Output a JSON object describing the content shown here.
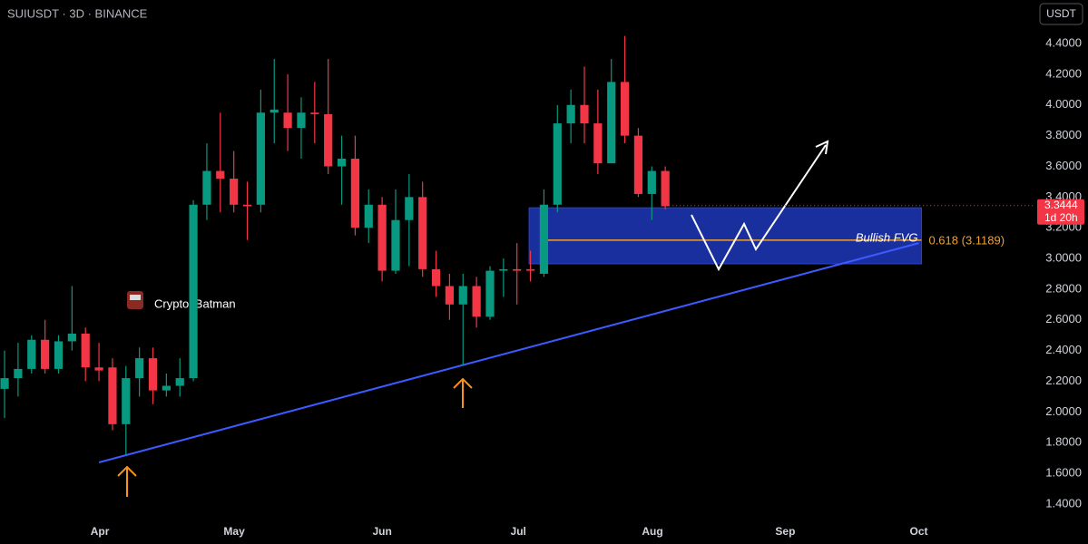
{
  "chart_data": {
    "type": "candlestick",
    "title": "SUIUSDT · 3D · BINANCE",
    "currency": "USDT",
    "watermark": "CryptosBatman",
    "up_color": "#089981",
    "down_color": "#f23645",
    "series": {
      "open": [
        2.15,
        2.22,
        2.28,
        2.47,
        2.28,
        2.46,
        2.51,
        2.29,
        2.29,
        1.92,
        2.22,
        2.35,
        2.14,
        2.17,
        2.22,
        3.35,
        3.57,
        3.52,
        3.35,
        3.35,
        3.95,
        3.95,
        3.85,
        3.95,
        3.94,
        3.6,
        3.65,
        3.2,
        3.35,
        2.92,
        3.25,
        3.4,
        2.93,
        2.82,
        2.7,
        2.82,
        2.62,
        2.92,
        2.93,
        2.93,
        2.9,
        3.35,
        3.88,
        4.0,
        3.88,
        3.62,
        4.15,
        3.8,
        3.42,
        3.57
      ],
      "high": [
        2.4,
        2.45,
        2.5,
        2.6,
        2.5,
        2.82,
        2.55,
        2.45,
        2.35,
        2.3,
        2.42,
        2.42,
        2.25,
        2.35,
        3.38,
        3.75,
        3.95,
        3.7,
        3.5,
        4.1,
        4.3,
        4.2,
        4.05,
        4.15,
        4.3,
        3.8,
        3.8,
        3.45,
        3.4,
        3.45,
        3.55,
        3.5,
        3.05,
        2.9,
        2.9,
        2.88,
        2.95,
        3.0,
        3.1,
        3.05,
        3.45,
        4.0,
        4.1,
        4.25,
        4.1,
        4.3,
        4.45,
        3.85,
        3.6,
        3.6
      ],
      "low": [
        1.96,
        2.1,
        2.25,
        2.25,
        2.25,
        2.4,
        2.2,
        2.2,
        1.88,
        1.72,
        2.1,
        2.05,
        2.1,
        2.1,
        2.2,
        3.25,
        3.3,
        3.3,
        3.12,
        3.3,
        3.75,
        3.7,
        3.65,
        3.75,
        3.55,
        3.35,
        3.15,
        3.1,
        2.85,
        2.9,
        2.95,
        2.88,
        2.75,
        2.6,
        2.3,
        2.55,
        2.6,
        2.75,
        2.7,
        2.85,
        2.88,
        3.3,
        3.75,
        3.75,
        3.55,
        3.65,
        3.75,
        3.4,
        3.25,
        3.32
      ],
      "close": [
        2.22,
        2.28,
        2.47,
        2.28,
        2.46,
        2.51,
        2.29,
        2.27,
        1.92,
        2.22,
        2.35,
        2.14,
        2.17,
        2.22,
        3.35,
        3.57,
        3.52,
        3.35,
        3.34,
        3.95,
        3.97,
        3.85,
        3.95,
        3.94,
        3.6,
        3.65,
        3.2,
        3.35,
        2.92,
        3.25,
        3.4,
        2.93,
        2.82,
        2.7,
        2.82,
        2.62,
        2.92,
        2.93,
        2.92,
        2.92,
        3.35,
        3.88,
        4.0,
        3.88,
        3.62,
        4.15,
        3.8,
        3.42,
        3.57,
        3.34
      ]
    },
    "xlim": [
      -0.34,
      76.38
    ],
    "xticks": [
      {
        "value": 7.07,
        "label": "Apr"
      },
      {
        "value": 17.03,
        "label": "May"
      },
      {
        "value": 28.0,
        "label": "Jun"
      },
      {
        "value": 38.1,
        "label": "Jul"
      },
      {
        "value": 48.05,
        "label": "Aug"
      },
      {
        "value": 57.9,
        "label": "Sep"
      },
      {
        "value": 67.8,
        "label": "Oct"
      }
    ],
    "ylim": [
      1.287,
      4.684
    ],
    "yticks": [
      {
        "value": 1.4,
        "label": "1.4000"
      },
      {
        "value": 1.6,
        "label": "1.6000"
      },
      {
        "value": 1.8,
        "label": "1.8000"
      },
      {
        "value": 2.0,
        "label": "2.0000"
      },
      {
        "value": 2.2,
        "label": "2.2000"
      },
      {
        "value": 2.4,
        "label": "2.4000"
      },
      {
        "value": 2.6,
        "label": "2.6000"
      },
      {
        "value": 2.8,
        "label": "2.8000"
      },
      {
        "value": 3.0,
        "label": "3.0000"
      },
      {
        "value": 3.2,
        "label": "3.2000"
      },
      {
        "value": 3.4,
        "label": "3.4000"
      },
      {
        "value": 3.6,
        "label": "3.6000"
      },
      {
        "value": 3.8,
        "label": "3.8000"
      },
      {
        "value": 4.0,
        "label": "4.0000"
      },
      {
        "value": 4.2,
        "label": "4.2000"
      },
      {
        "value": 4.4,
        "label": "4.4000"
      }
    ],
    "last_price": {
      "value": 3.3444,
      "label": "3.3444",
      "countdown": "1d 20h"
    },
    "trendline": {
      "x": [
        7.0,
        67.8
      ],
      "y": [
        1.671,
        3.1
      ],
      "color": "#3d5afe"
    },
    "zone": {
      "name": "Bullish FVG",
      "x": [
        38.9,
        68.0
      ],
      "y": [
        2.965,
        3.33
      ],
      "color": "#1a2f9e"
    },
    "fib_level": {
      "value": 3.1189,
      "label": "0.618 (3.1189)",
      "color": "#f0a030"
    }
  }
}
